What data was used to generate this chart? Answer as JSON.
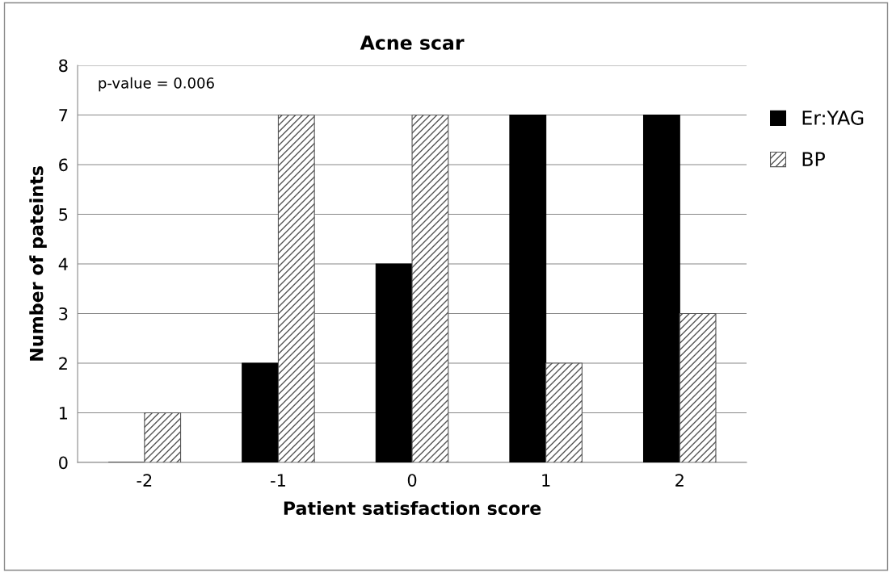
{
  "chart_data": {
    "type": "bar",
    "title": "Acne scar",
    "xlabel": "Patient satisfaction score",
    "ylabel": "Number of pateints",
    "categories": [
      "-2",
      "-1",
      "0",
      "1",
      "2"
    ],
    "series": [
      {
        "name": "Er:YAG",
        "color": "#000000",
        "values": [
          0,
          2,
          4,
          7,
          7
        ]
      },
      {
        "name": "BP",
        "color": "#555555",
        "values": [
          1,
          7,
          7,
          2,
          3
        ]
      }
    ],
    "ylim": [
      0,
      8
    ],
    "yticks": [
      0,
      1,
      2,
      3,
      4,
      5,
      6,
      7,
      8
    ],
    "grid": "y",
    "legend": "right",
    "annotations": [
      "p-value = 0.006"
    ]
  }
}
